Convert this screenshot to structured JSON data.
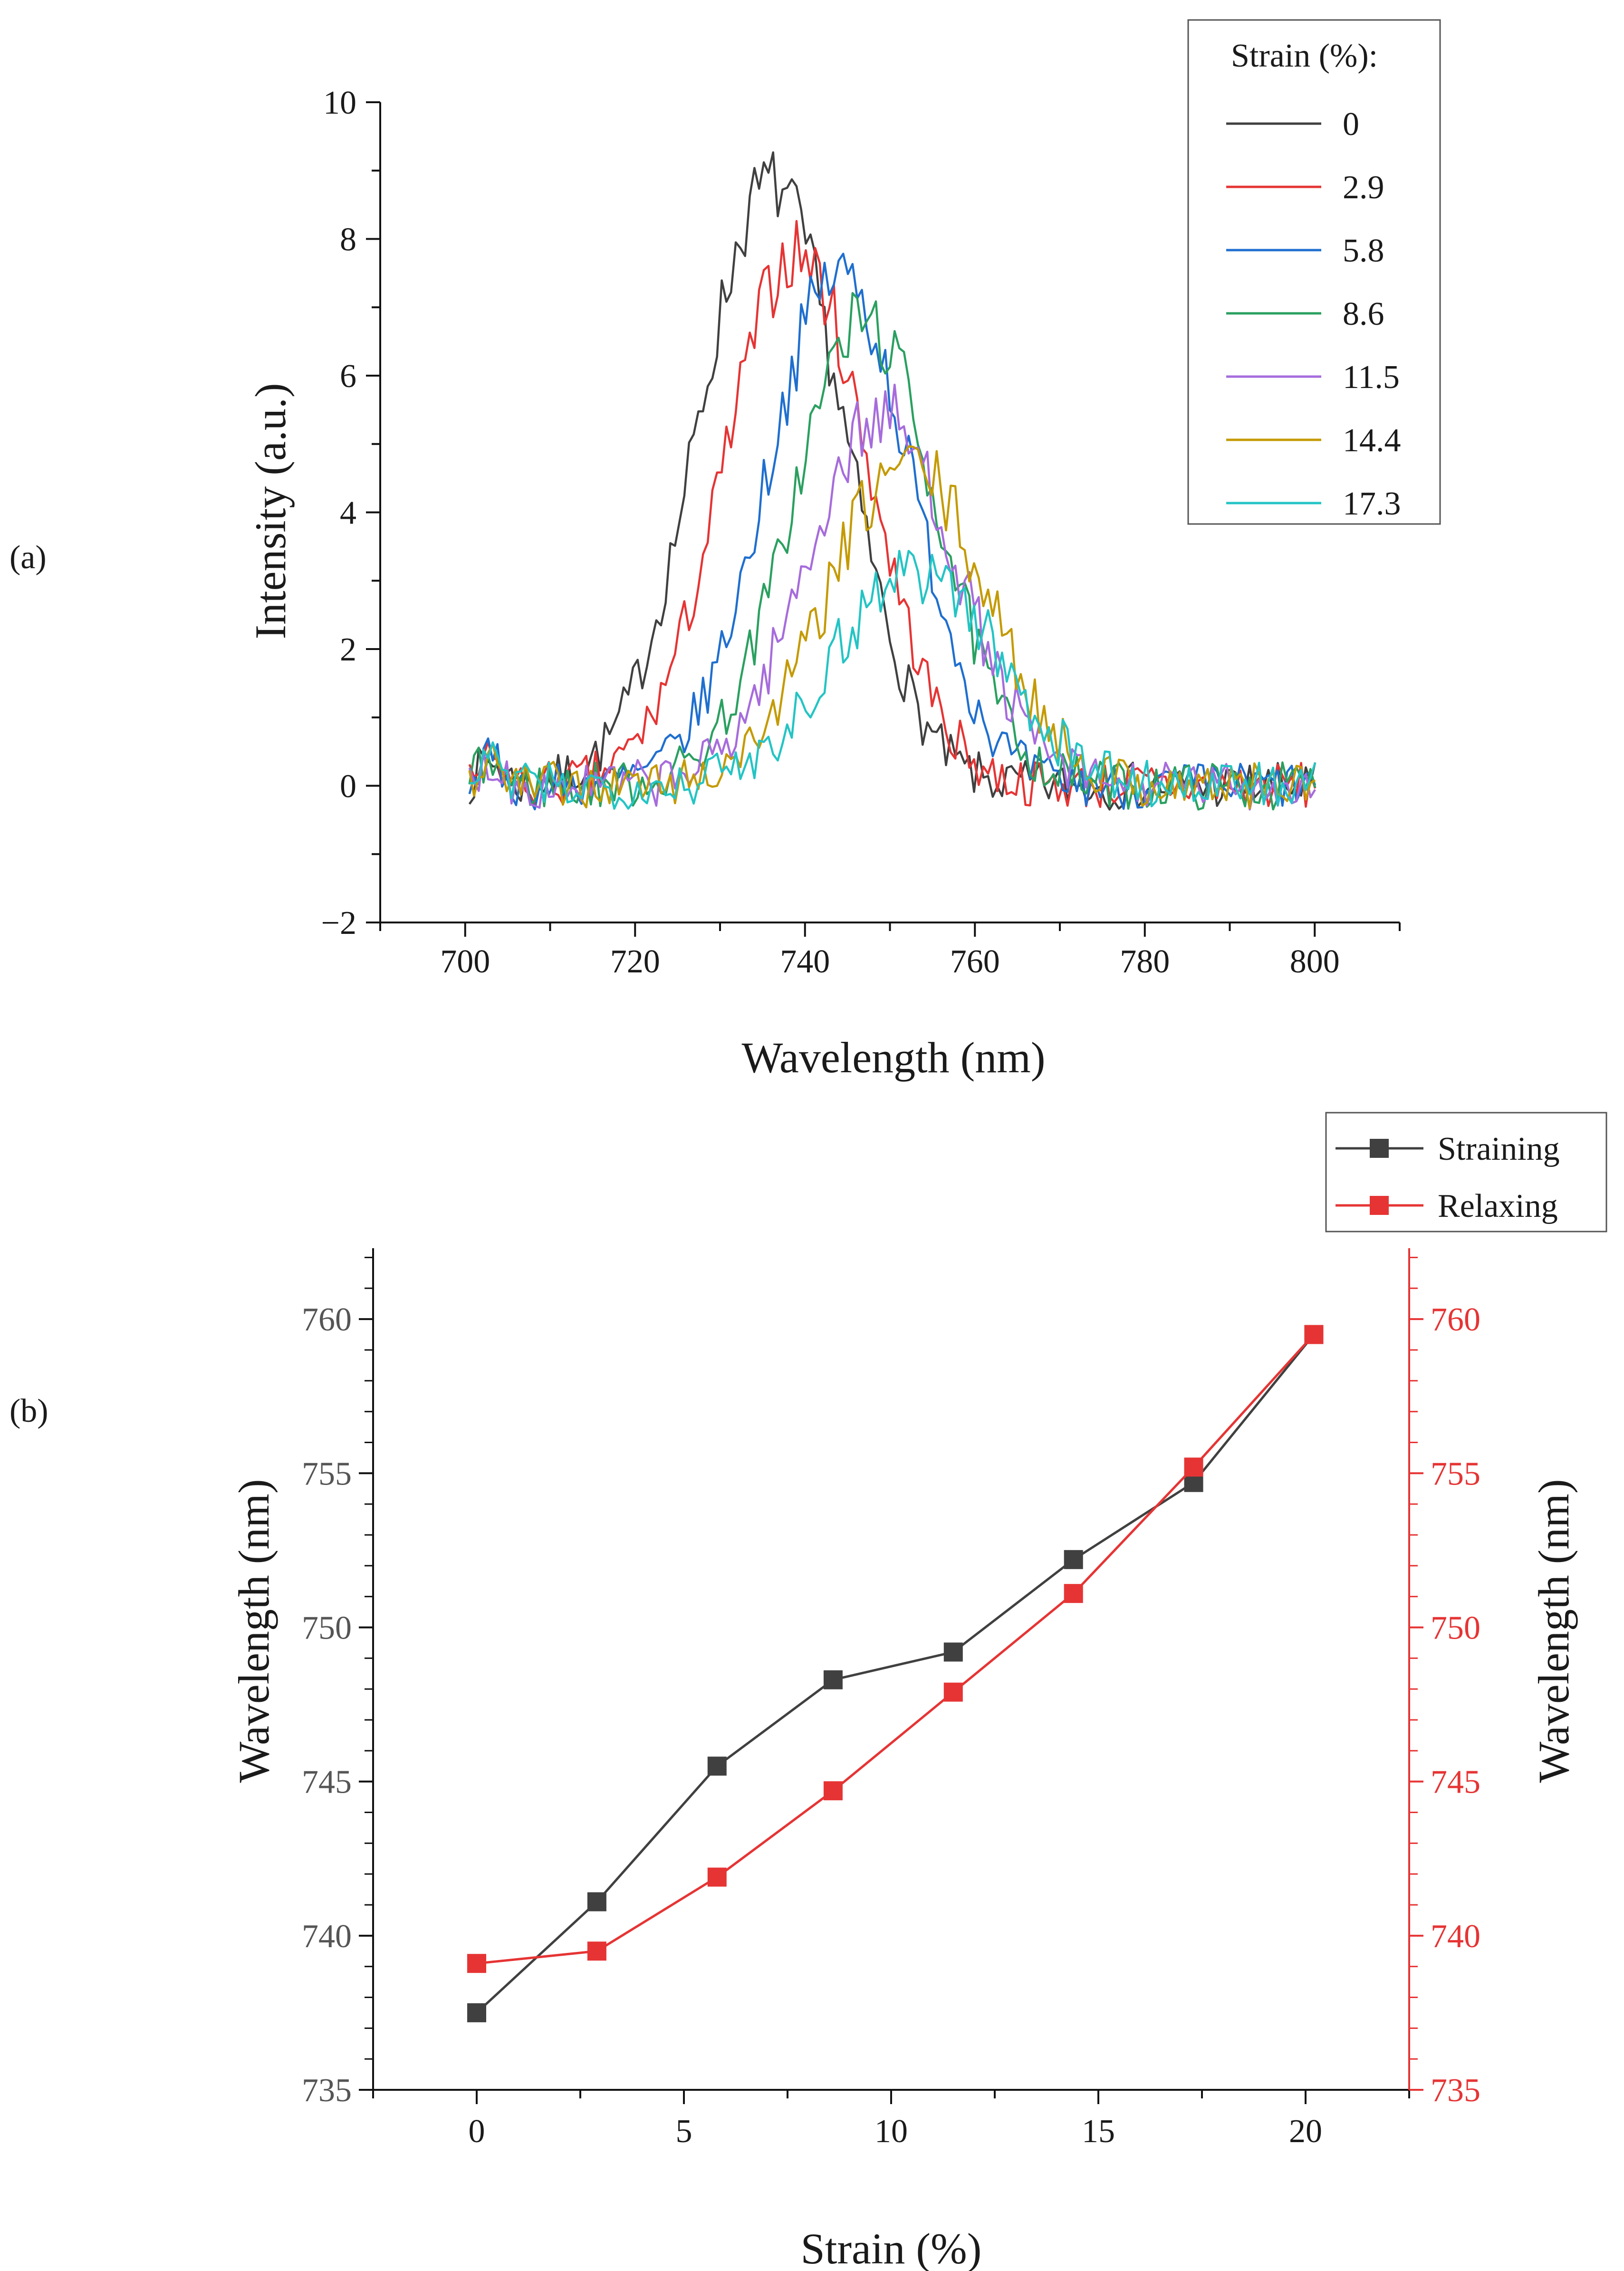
{
  "chart_data": [
    {
      "panel_label": "(a)",
      "type": "line",
      "xlabel": "Wavelength (nm)",
      "ylabel": "Intensity (a.u.)",
      "xlim": [
        690,
        810
      ],
      "ylim": [
        -2,
        10
      ],
      "xticks": [
        700,
        720,
        740,
        760,
        780,
        800
      ],
      "yticks": [
        -2,
        0,
        2,
        4,
        6,
        8,
        10
      ],
      "ytick_labels": [
        "−2",
        "0",
        "2",
        "4",
        "6",
        "8",
        "10"
      ],
      "grid": false,
      "legend": {
        "title": "Strain (%):",
        "placement": "top-right"
      },
      "x_range": [
        700.5,
        800.5
      ],
      "noise_amplitude": 0.35,
      "series": [
        {
          "name": "0",
          "color": "#404040",
          "peak_x": 736,
          "peak_y": 8.8,
          "width": 12
        },
        {
          "name": "2.9",
          "color": "#e63434",
          "peak_x": 739,
          "peak_y": 7.8,
          "width": 12
        },
        {
          "name": "5.8",
          "color": "#1f6fcf",
          "peak_x": 744,
          "peak_y": 7.5,
          "width": 12
        },
        {
          "name": "8.6",
          "color": "#2aa060",
          "peak_x": 747,
          "peak_y": 6.8,
          "width": 12
        },
        {
          "name": "11.5",
          "color": "#a66cdc",
          "peak_x": 749,
          "peak_y": 5.4,
          "width": 12.5
        },
        {
          "name": "14.4",
          "color": "#c49a00",
          "peak_x": 752,
          "peak_y": 4.7,
          "width": 13
        },
        {
          "name": "17.3",
          "color": "#24c4c4",
          "peak_x": 753,
          "peak_y": 3.2,
          "width": 13.5
        }
      ]
    },
    {
      "panel_label": "(b)",
      "type": "line",
      "xlabel": "Strain (%)",
      "ylabel": "Wavelength (nm)",
      "ylabel_right": "Wavelength (nm)",
      "xlim": [
        -2.5,
        22.5
      ],
      "ylim": [
        735,
        762.3
      ],
      "xticks": [
        0,
        5,
        10,
        15,
        20
      ],
      "yticks": [
        735,
        740,
        745,
        750,
        755,
        760
      ],
      "left_axis_color": "#555555",
      "right_axis_color": "#e63434",
      "grid": false,
      "legend": {
        "placement": "top-right"
      },
      "x": [
        0,
        2.9,
        5.8,
        8.6,
        11.5,
        14.4,
        17.3,
        20.2
      ],
      "series": [
        {
          "name": "Straining",
          "color": "#404040",
          "marker": "square",
          "values": [
            737.5,
            741.1,
            745.5,
            748.3,
            749.2,
            752.2,
            754.7,
            759.5
          ]
        },
        {
          "name": "Relaxing",
          "color": "#e63434",
          "marker": "square",
          "values": [
            739.1,
            739.5,
            741.9,
            744.7,
            747.9,
            751.1,
            755.2,
            759.5
          ]
        }
      ]
    }
  ]
}
